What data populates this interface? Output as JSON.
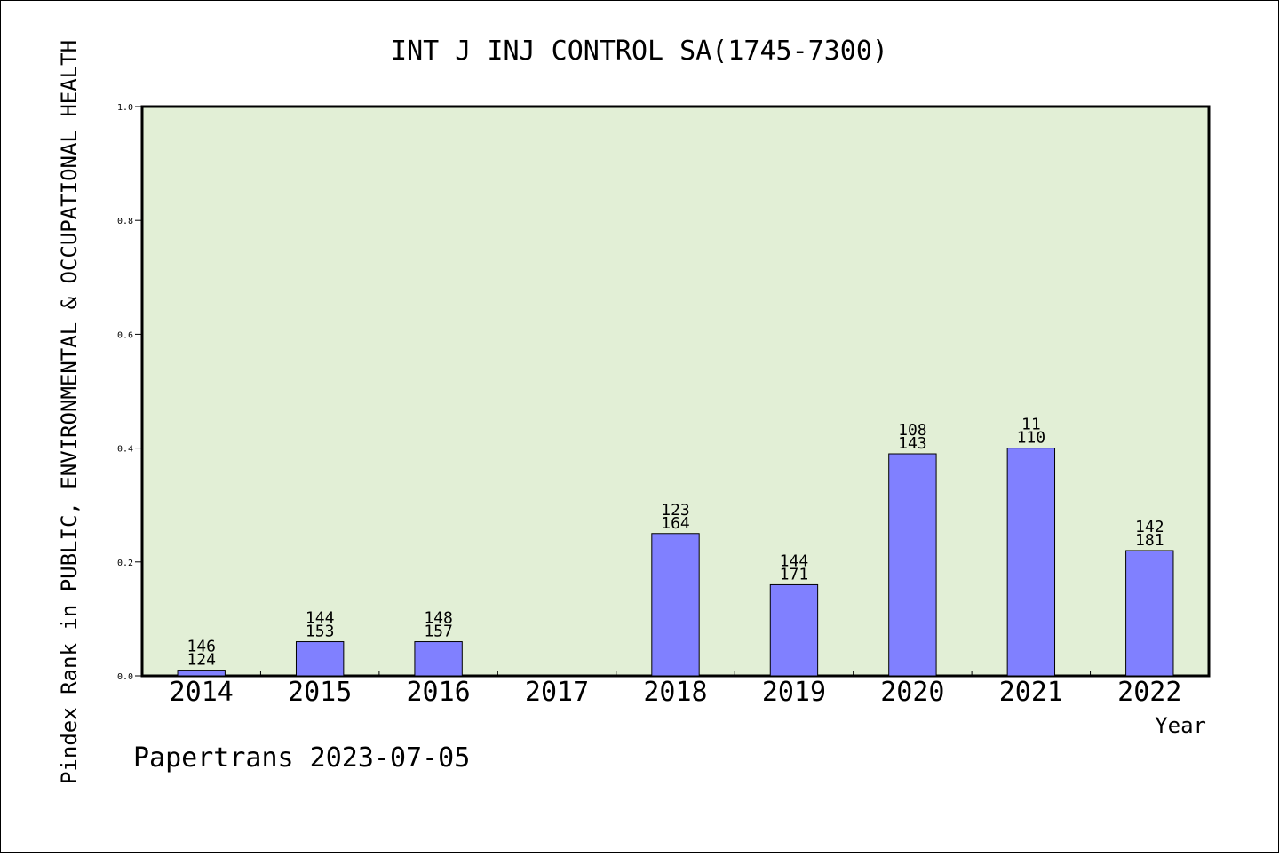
{
  "chart_data": {
    "type": "bar",
    "title": "INT J INJ CONTROL SA(1745-7300)",
    "ylabel": "Pindex Rank in PUBLIC, ENVIRONMENTAL & OCCUPATIONAL HEALTH",
    "xlabel": "Year",
    "watermark": "Papertrans 2023-07-05",
    "ylim": [
      0,
      1.0
    ],
    "yticks": [
      "0.0",
      "0.2",
      "0.4",
      "0.6",
      "0.8",
      "1.0"
    ],
    "categories": [
      "2014",
      "2015",
      "2016",
      "2017",
      "2018",
      "2019",
      "2020",
      "2021",
      "2022"
    ],
    "values": [
      0.01,
      0.06,
      0.06,
      null,
      0.25,
      0.16,
      0.39,
      0.4,
      0.22
    ],
    "labels_top": [
      "146",
      "144",
      "148",
      "",
      "123",
      "144",
      "108",
      "11",
      "142"
    ],
    "labels_bottom": [
      "124",
      "153",
      "157",
      "",
      "164",
      "171",
      "143",
      "110",
      "181"
    ],
    "colors": {
      "plot_background": "#e2efd6",
      "bar_fill": "#8080ff",
      "bar_stroke": "#000000",
      "frame": "#000000"
    },
    "grid": false
  }
}
